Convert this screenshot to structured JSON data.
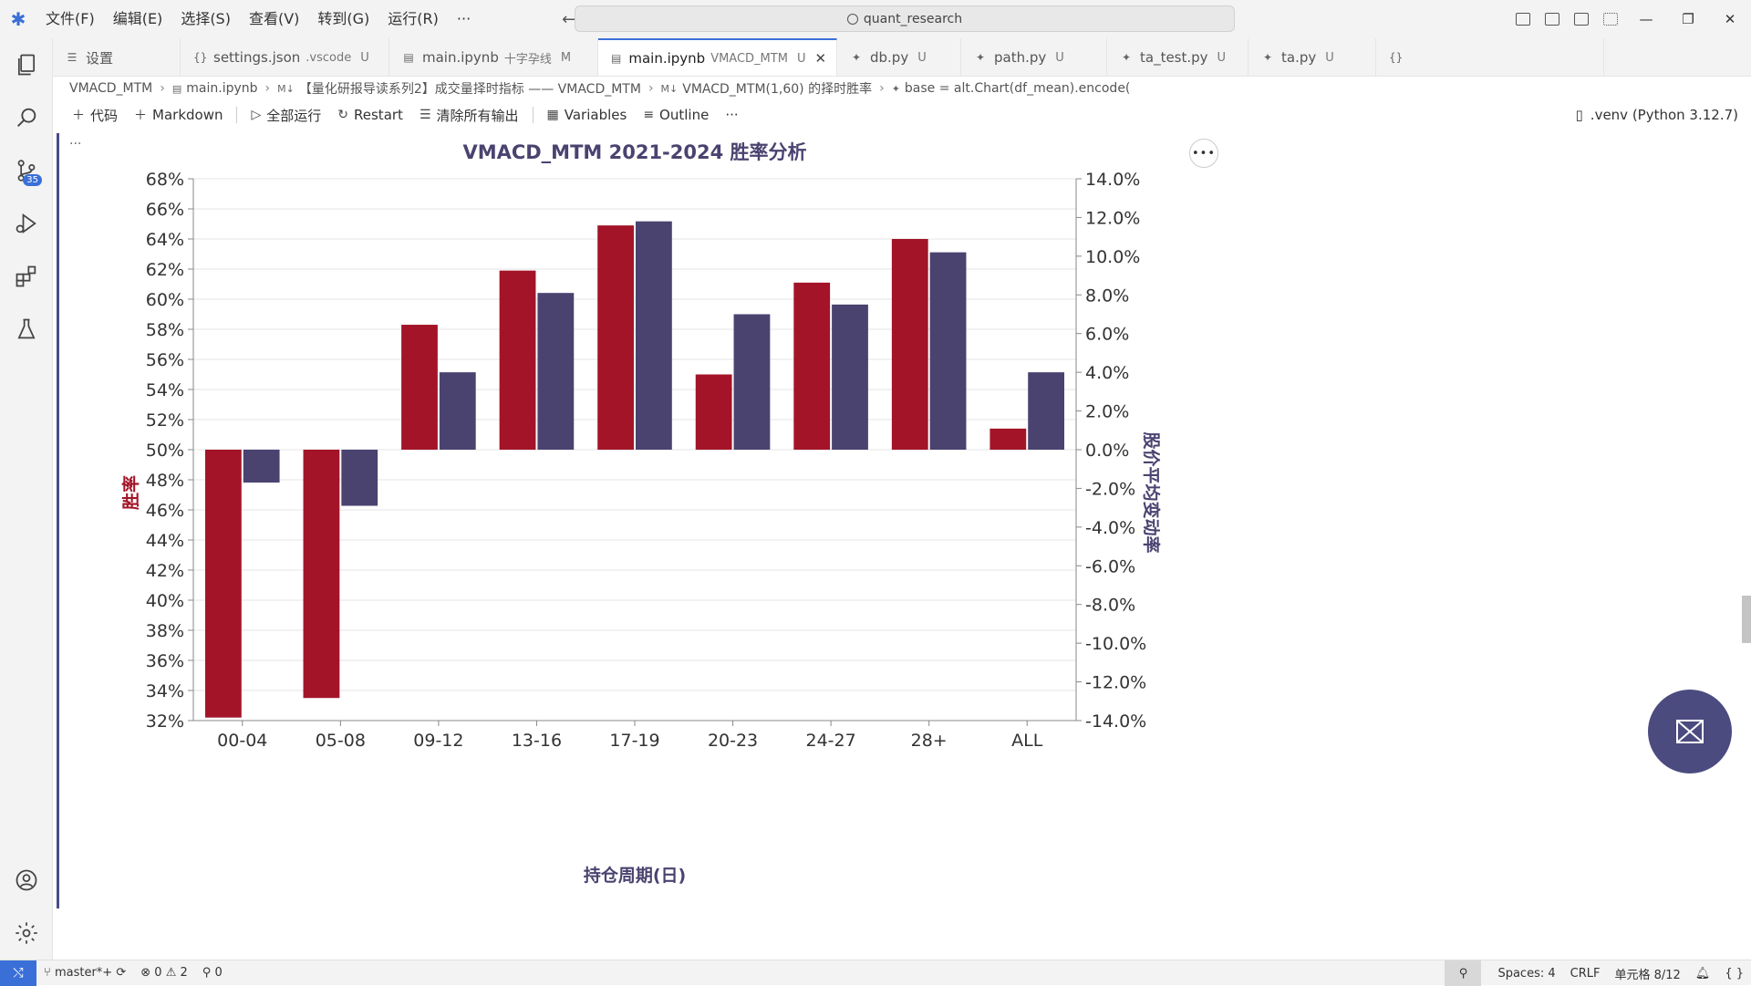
{
  "titlebar": {
    "menu": [
      "文件(F)",
      "编辑(E)",
      "选择(S)",
      "查看(V)",
      "转到(G)",
      "运行(R)",
      "···"
    ],
    "search_text": "quant_research"
  },
  "tabs": [
    {
      "label": "设置",
      "desc": "",
      "state": "",
      "icon": "settings-icon"
    },
    {
      "label": "settings.json",
      "desc": ".vscode",
      "state": "U",
      "icon": "json-icon"
    },
    {
      "label": "main.ipynb",
      "desc": "十字孕线",
      "state": "M",
      "icon": "notebook-icon"
    },
    {
      "label": "main.ipynb",
      "desc": "VMACD_MTM",
      "state": "U",
      "icon": "notebook-icon",
      "active": true
    },
    {
      "label": "db.py",
      "desc": "",
      "state": "U",
      "icon": "python-icon"
    },
    {
      "label": "path.py",
      "desc": "",
      "state": "U",
      "icon": "python-icon"
    },
    {
      "label": "ta_test.py",
      "desc": "",
      "state": "U",
      "icon": "python-icon"
    },
    {
      "label": "ta.py",
      "desc": "",
      "state": "U",
      "icon": "python-icon"
    }
  ],
  "breadcrumb": {
    "c1": "VMACD_MTM",
    "c2": "main.ipynb",
    "c3": "【量化研报导读系列2】成交量择时指标 —— VMACD_MTM",
    "c4": "VMACD_MTM(1,60) 的择时胜率",
    "c5": "base = alt.Chart(df_mean).encode("
  },
  "toolbar": {
    "code": "代码",
    "markdown": "Markdown",
    "run_all": "全部运行",
    "restart": "Restart",
    "clear": "清除所有输出",
    "variables": "Variables",
    "outline": "Outline",
    "more": "···",
    "kernel": ".venv (Python 3.12.7)"
  },
  "cell": {
    "ellipsis": "···",
    "chart_menu": "•••"
  },
  "colors": {
    "win_rate": "#a31428",
    "price_change": "#4a4370",
    "accent": "#3a6fd8"
  },
  "chart_data": {
    "type": "bar",
    "title": "VMACD_MTM 2021-2024 胜率分析",
    "xlabel": "持仓周期(日)",
    "ylabel_left": "胜率",
    "ylabel_right": "股价平均变动率",
    "categories": [
      "00-04",
      "05-08",
      "09-12",
      "13-16",
      "17-19",
      "20-23",
      "24-27",
      "28+",
      "ALL"
    ],
    "series": [
      {
        "name": "胜率",
        "axis": "left",
        "values": [
          32.2,
          33.5,
          58.3,
          61.9,
          64.9,
          55.0,
          61.1,
          64.0,
          51.4
        ]
      },
      {
        "name": "股价平均变动率",
        "axis": "right",
        "values": [
          -1.7,
          -2.9,
          4.0,
          8.1,
          11.8,
          7.0,
          7.5,
          10.2,
          4.0
        ]
      }
    ],
    "ylim_left": [
      32,
      68
    ],
    "ylim_right": [
      -14,
      14
    ],
    "yticks_left": [
      "68%",
      "66%",
      "64%",
      "62%",
      "60%",
      "58%",
      "56%",
      "54%",
      "52%",
      "50%",
      "48%",
      "46%",
      "44%",
      "42%",
      "40%",
      "38%",
      "36%",
      "34%",
      "32%"
    ],
    "yticks_right": [
      "14.0%",
      "12.0%",
      "10.0%",
      "8.0%",
      "6.0%",
      "4.0%",
      "2.0%",
      "0.0%",
      "-2.0%",
      "-4.0%",
      "-6.0%",
      "-8.0%",
      "-10.0%",
      "-12.0%",
      "-14.0%"
    ],
    "grid": true
  },
  "status": {
    "branch": "master*+",
    "errors": "0",
    "warnings": "2",
    "ports": "0",
    "spaces": "Spaces: 4",
    "eol": "CRLF",
    "cell_pos": "单元格 8/12"
  }
}
